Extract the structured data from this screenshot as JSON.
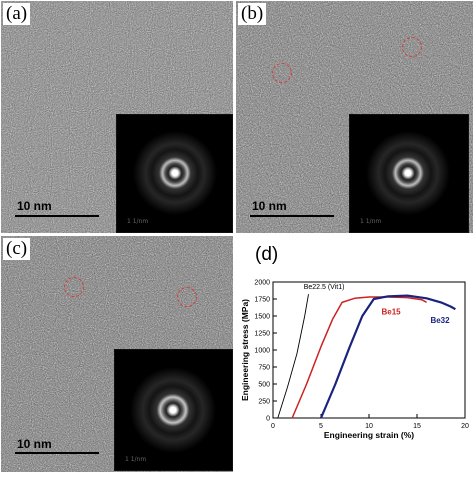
{
  "panels": {
    "a": {
      "label": "(a)",
      "scale_label": "10 nm",
      "inset_scale": "1 1/nm"
    },
    "b": {
      "label": "(b)",
      "scale_label": "10 nm",
      "inset_scale": "1 1/nm"
    },
    "c": {
      "label": "(c)",
      "scale_label": "10 nm",
      "inset_scale": "1 1/nm"
    },
    "d": {
      "label": "(d)"
    }
  },
  "colors": {
    "tem_gray": "#6f6f6f",
    "circle_marker": "#d83a3a",
    "series_vit1": "#000000",
    "series_be15": "#cc2222",
    "series_be32": "#1a237e"
  },
  "chart_data": {
    "type": "line",
    "xlabel": "Engineering strain (%)",
    "ylabel": "Engineering stress (MPa)",
    "xlim": [
      0,
      20
    ],
    "ylim": [
      0,
      2000
    ],
    "xticks": [
      0,
      5,
      10,
      15,
      20
    ],
    "yticks": [
      0,
      250,
      500,
      750,
      1000,
      1250,
      1500,
      1750,
      2000
    ],
    "grid": false,
    "series": [
      {
        "name": "Be22.5 (Vit1)",
        "color": "#000000",
        "x": [
          0.5,
          1.5,
          2.5,
          3.3,
          3.7
        ],
        "y": [
          0,
          450,
          950,
          1500,
          1820
        ]
      },
      {
        "name": "Be15",
        "color": "#cc2222",
        "x": [
          2.0,
          3.5,
          5.0,
          6.2,
          7.2,
          8.5,
          10,
          12,
          14,
          15.5,
          16.0
        ],
        "y": [
          0,
          500,
          1050,
          1450,
          1700,
          1760,
          1780,
          1780,
          1770,
          1740,
          1700
        ]
      },
      {
        "name": "Be32",
        "color": "#1a237e",
        "x": [
          5.0,
          6.5,
          8.0,
          9.3,
          10.5,
          12,
          14,
          16,
          17.5,
          18.5,
          19.0
        ],
        "y": [
          0,
          500,
          1050,
          1500,
          1750,
          1790,
          1800,
          1760,
          1700,
          1640,
          1600
        ]
      }
    ]
  }
}
